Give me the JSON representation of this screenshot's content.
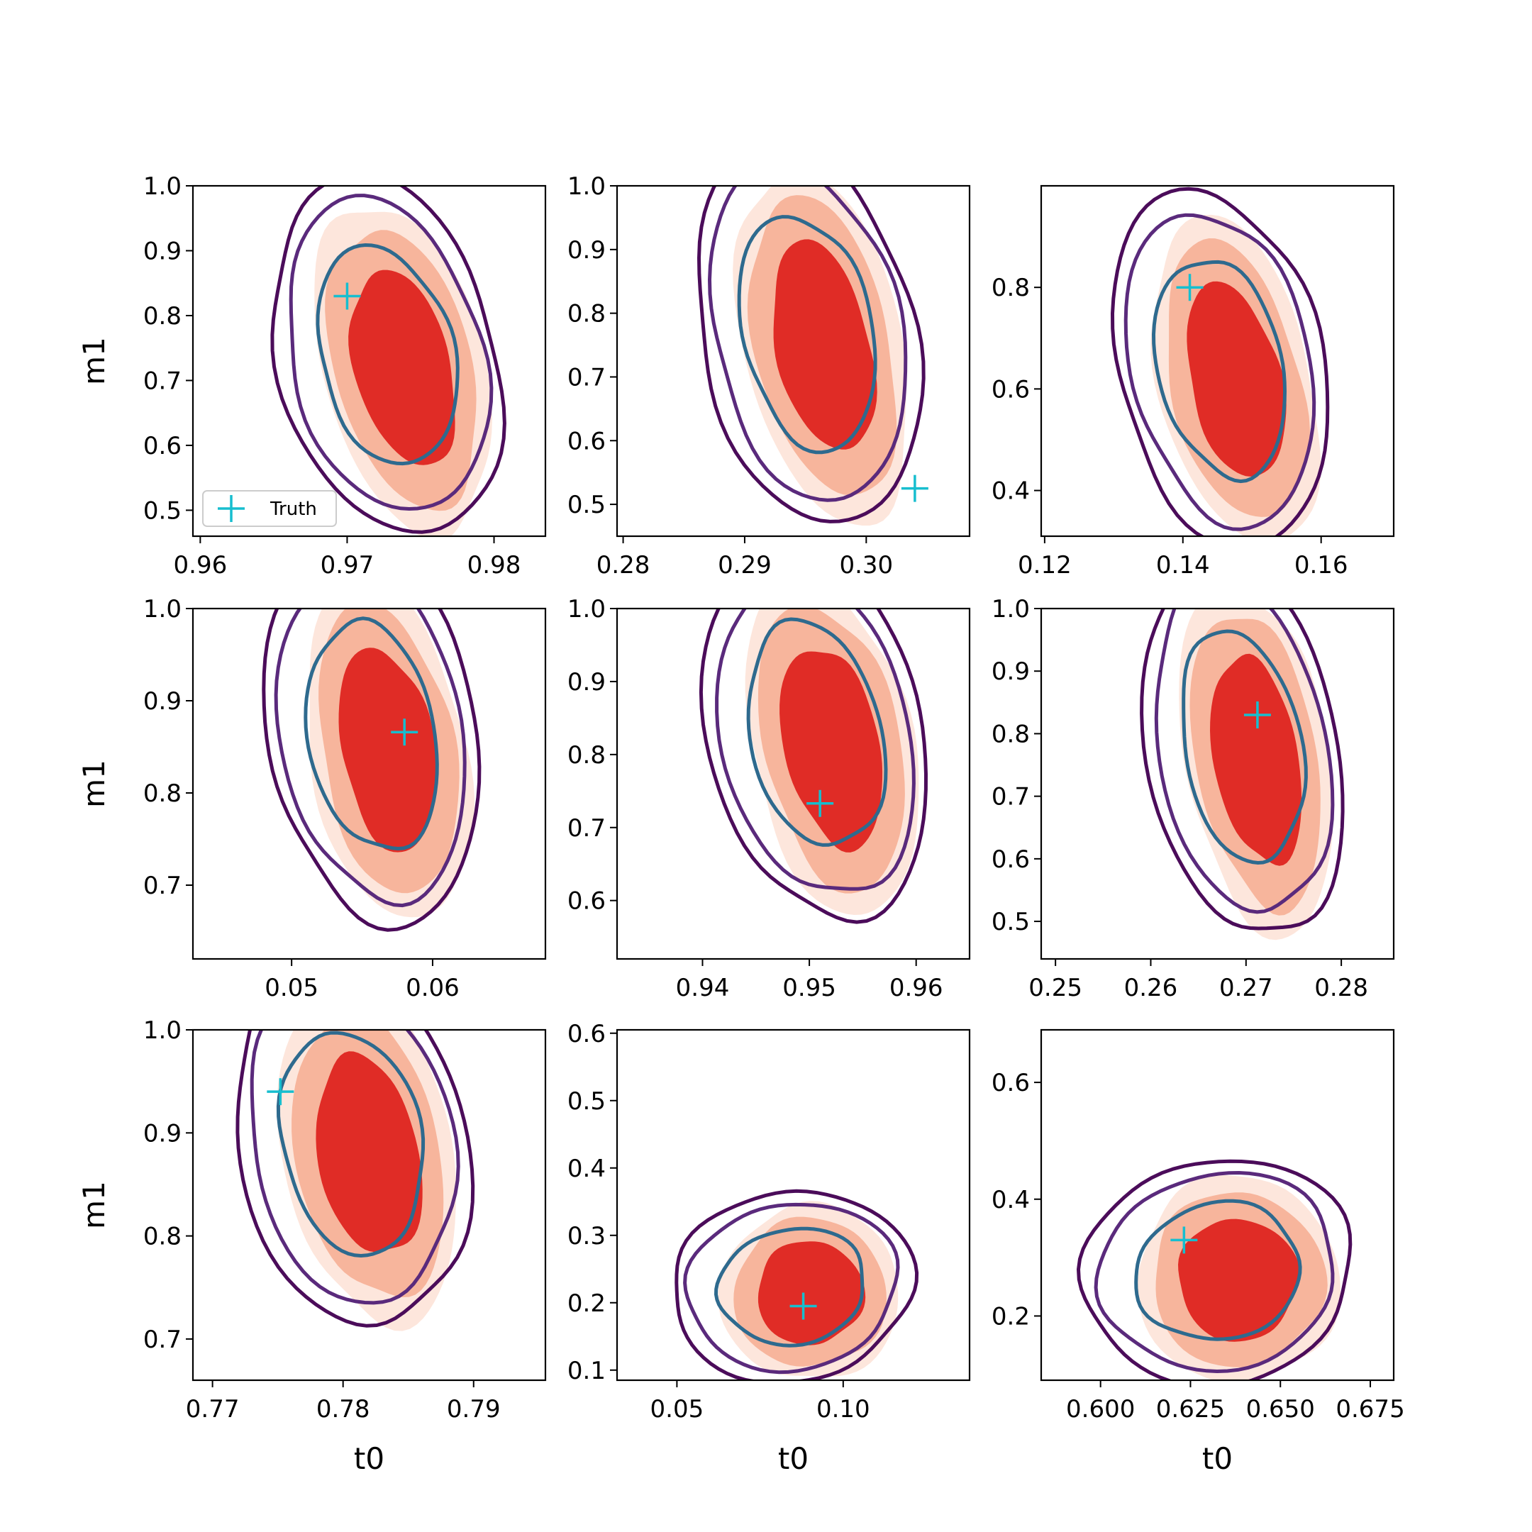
{
  "figure": {
    "background": "#ffffff",
    "colors": {
      "fill_outer": "#fde6dc",
      "fill_mid": "#f7b59c",
      "fill_inner": "#e02c26",
      "contour_outer": "#4b0c5a",
      "contour_mid": "#5a2a7c",
      "contour_inner": "#2e6a8e",
      "truth_marker": "#17becf"
    }
  },
  "chart_data": [
    {
      "type": "contour",
      "row": 0,
      "col": 0,
      "xlabel": "",
      "ylabel": "m1",
      "xlim": [
        0.9595,
        0.9835
      ],
      "ylim": [
        0.46,
        1.0
      ],
      "xticks": [
        "0.96",
        "0.97",
        "0.98"
      ],
      "xtick_values": [
        0.96,
        0.97,
        0.98
      ],
      "yticks": [
        "0.5",
        "0.6",
        "0.7",
        "0.8",
        "0.9",
        "1.0"
      ],
      "ytick_values": [
        0.5,
        0.6,
        0.7,
        0.8,
        0.9,
        1.0
      ],
      "center": [
        0.973,
        0.73
      ],
      "spread": [
        0.0055,
        0.22
      ],
      "slope": -0.85,
      "truth": [
        0.97,
        0.83
      ],
      "legend": {
        "label": "Truth",
        "location": "lower left"
      }
    },
    {
      "type": "contour",
      "row": 0,
      "col": 1,
      "xlabel": "",
      "ylabel": "",
      "xlim": [
        0.2795,
        0.3085
      ],
      "ylim": [
        0.45,
        1.0
      ],
      "xticks": [
        "0.28",
        "0.29",
        "0.30"
      ],
      "xtick_values": [
        0.28,
        0.29,
        0.3
      ],
      "yticks": [
        "0.5",
        "0.6",
        "0.7",
        "0.8",
        "0.9",
        "1.0"
      ],
      "ytick_values": [
        0.5,
        0.6,
        0.7,
        0.8,
        0.9,
        1.0
      ],
      "center": [
        0.2955,
        0.76
      ],
      "spread": [
        0.0065,
        0.24
      ],
      "slope": -0.7,
      "truth": [
        0.304,
        0.525
      ]
    },
    {
      "type": "contour",
      "row": 0,
      "col": 2,
      "xlabel": "",
      "ylabel": "",
      "xlim": [
        0.1195,
        0.1705
      ],
      "ylim": [
        0.31,
        1.0
      ],
      "xticks": [
        "0.12",
        "0.14",
        "0.16"
      ],
      "xtick_values": [
        0.12,
        0.14,
        0.16
      ],
      "yticks": [
        "0.4",
        "0.6",
        "0.8"
      ],
      "ytick_values": [
        0.4,
        0.6,
        0.8
      ],
      "center": [
        0.146,
        0.63
      ],
      "spread": [
        0.011,
        0.28
      ],
      "slope": -0.75,
      "truth": [
        0.141,
        0.8
      ]
    },
    {
      "type": "contour",
      "row": 1,
      "col": 0,
      "xlabel": "",
      "ylabel": "m1",
      "xlim": [
        0.043,
        0.068
      ],
      "ylim": [
        0.62,
        1.0
      ],
      "xticks": [
        "0.05",
        "0.06"
      ],
      "xtick_values": [
        0.05,
        0.06
      ],
      "yticks": [
        "0.7",
        "0.8",
        "0.9",
        "1.0"
      ],
      "ytick_values": [
        0.7,
        0.8,
        0.9,
        1.0
      ],
      "center": [
        0.056,
        0.855
      ],
      "spread": [
        0.0055,
        0.16
      ],
      "slope": -0.55,
      "truth": [
        0.058,
        0.866
      ]
    },
    {
      "type": "contour",
      "row": 1,
      "col": 1,
      "xlabel": "",
      "ylabel": "",
      "xlim": [
        0.932,
        0.965
      ],
      "ylim": [
        0.52,
        1.0
      ],
      "xticks": [
        "0.94",
        "0.95",
        "0.96"
      ],
      "xtick_values": [
        0.94,
        0.95,
        0.96
      ],
      "yticks": [
        "0.6",
        "0.7",
        "0.8",
        "0.9",
        "1.0"
      ],
      "ytick_values": [
        0.6,
        0.7,
        0.8,
        0.9,
        1.0
      ],
      "center": [
        0.951,
        0.82
      ],
      "spread": [
        0.0075,
        0.2
      ],
      "slope": -0.7,
      "truth": [
        0.951,
        0.733
      ]
    },
    {
      "type": "contour",
      "row": 1,
      "col": 2,
      "xlabel": "",
      "ylabel": "",
      "xlim": [
        0.2485,
        0.2855
      ],
      "ylim": [
        0.44,
        1.0
      ],
      "xticks": [
        "0.25",
        "0.26",
        "0.27",
        "0.28"
      ],
      "xtick_values": [
        0.25,
        0.26,
        0.27,
        0.28
      ],
      "yticks": [
        "0.5",
        "0.6",
        "0.7",
        "0.8",
        "0.9",
        "1.0"
      ],
      "ytick_values": [
        0.5,
        0.6,
        0.7,
        0.8,
        0.9,
        1.0
      ],
      "center": [
        0.27,
        0.77
      ],
      "spread": [
        0.0075,
        0.24
      ],
      "slope": -0.55,
      "truth": [
        0.2712,
        0.83
      ]
    },
    {
      "type": "contour",
      "row": 2,
      "col": 0,
      "xlabel": "t0",
      "ylabel": "m1",
      "xlim": [
        0.7685,
        0.7955
      ],
      "ylim": [
        0.66,
        1.0
      ],
      "xticks": [
        "0.77",
        "0.78",
        "0.79"
      ],
      "xtick_values": [
        0.77,
        0.78,
        0.79
      ],
      "yticks": [
        "0.7",
        "0.8",
        "0.9",
        "1.0"
      ],
      "ytick_values": [
        0.7,
        0.8,
        0.9,
        1.0
      ],
      "center": [
        0.781,
        0.885
      ],
      "spread": [
        0.0065,
        0.14
      ],
      "slope": -0.6,
      "truth": [
        0.7752,
        0.94
      ]
    },
    {
      "type": "contour",
      "row": 2,
      "col": 1,
      "xlabel": "t0",
      "ylabel": "",
      "xlim": [
        0.032,
        0.138
      ],
      "ylim": [
        0.085,
        0.605
      ],
      "xticks": [
        "0.05",
        "0.10"
      ],
      "xtick_values": [
        0.05,
        0.1
      ],
      "yticks": [
        "0.1",
        "0.2",
        "0.3",
        "0.4",
        "0.5",
        "0.6"
      ],
      "ytick_values": [
        0.1,
        0.2,
        0.3,
        0.4,
        0.5,
        0.6
      ],
      "center": [
        0.086,
        0.22
      ],
      "spread": [
        0.027,
        0.11
      ],
      "slope": -0.55,
      "truth": [
        0.088,
        0.195
      ]
    },
    {
      "type": "contour",
      "row": 2,
      "col": 2,
      "xlabel": "t0",
      "ylabel": "",
      "xlim": [
        0.5835,
        0.6815
      ],
      "ylim": [
        0.09,
        0.69
      ],
      "xticks": [
        "0.600",
        "0.625",
        "0.650",
        "0.675"
      ],
      "xtick_values": [
        0.6,
        0.625,
        0.65,
        0.675
      ],
      "yticks": [
        "0.2",
        "0.4",
        "0.6"
      ],
      "ytick_values": [
        0.2,
        0.4,
        0.6
      ],
      "center": [
        0.634,
        0.27
      ],
      "spread": [
        0.028,
        0.15
      ],
      "slope": -0.65,
      "truth": [
        0.6232,
        0.33
      ]
    }
  ]
}
